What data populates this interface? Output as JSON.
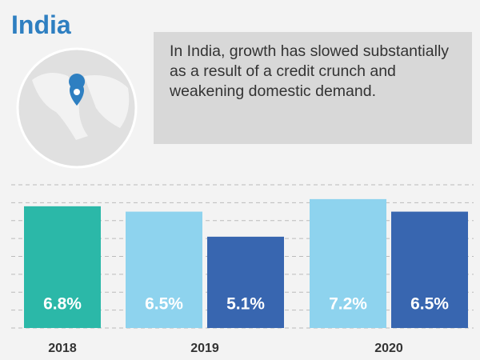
{
  "chart_data": {
    "type": "bar",
    "title": "India",
    "annotation": "In India, growth has slowed substantially as a result of a credit crunch and weakening domestic demand.",
    "groups": [
      {
        "category": "2018",
        "bars": [
          {
            "value": 6.8,
            "value_label": "6.8%",
            "color": "#2bb8a8"
          }
        ]
      },
      {
        "category": "2019",
        "bars": [
          {
            "value": 6.5,
            "value_label": "6.5%",
            "color": "#8ed3ee"
          },
          {
            "value": 5.1,
            "value_label": "5.1%",
            "color": "#3866b0"
          }
        ]
      },
      {
        "category": "2020",
        "bars": [
          {
            "value": 7.2,
            "value_label": "7.2%",
            "color": "#8ed3ee"
          },
          {
            "value": 6.5,
            "value_label": "6.5%",
            "color": "#3866b0"
          }
        ]
      }
    ],
    "ylim": [
      0,
      8
    ],
    "yticks": [
      0,
      1,
      2,
      3,
      4,
      5,
      6,
      7,
      8
    ],
    "grid": "dashed"
  }
}
